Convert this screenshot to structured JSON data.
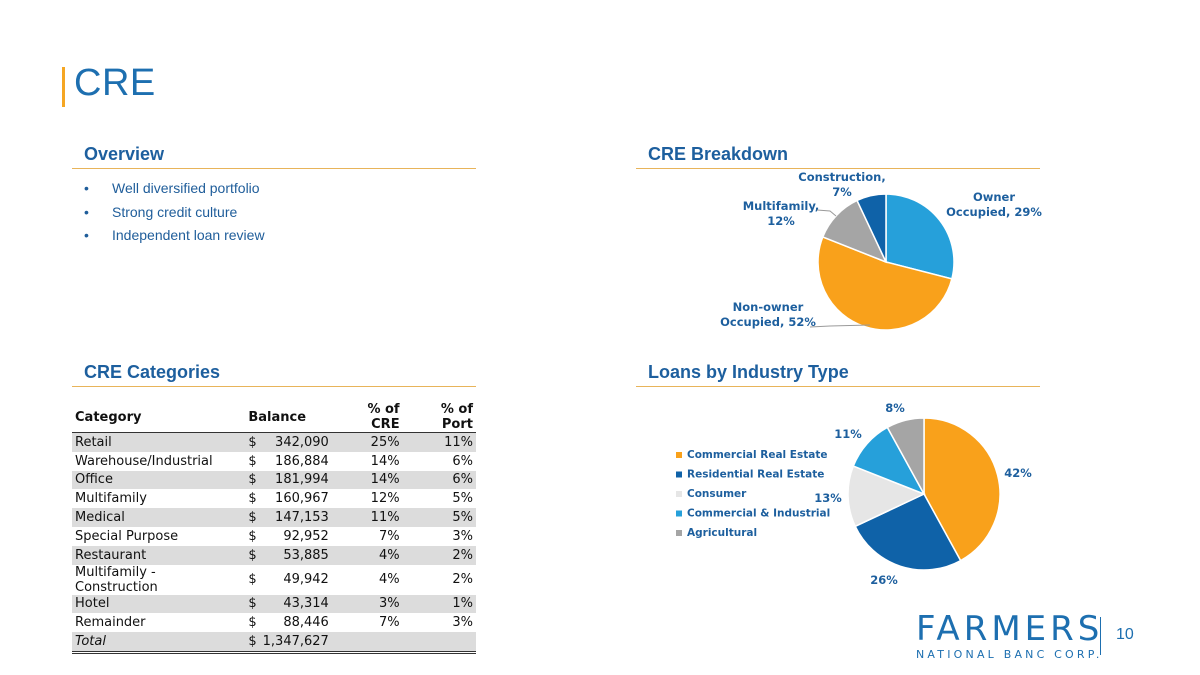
{
  "title": "CRE",
  "overview": {
    "heading": "Overview",
    "bullets": [
      "Well diversified portfolio",
      "Strong credit culture",
      "Independent loan review"
    ]
  },
  "breakdown": {
    "heading": "CRE Breakdown"
  },
  "categories": {
    "heading": "CRE Categories",
    "columns": [
      "Category",
      "Balance",
      "% of CRE",
      "% of Port"
    ],
    "rows": [
      {
        "category": "Retail",
        "cur": "$",
        "balance": "342,090",
        "pct_cre": "25%",
        "pct_port": "11%"
      },
      {
        "category": "Warehouse/Industrial",
        "cur": "$",
        "balance": "186,884",
        "pct_cre": "14%",
        "pct_port": "6%"
      },
      {
        "category": "Office",
        "cur": "$",
        "balance": "181,994",
        "pct_cre": "14%",
        "pct_port": "6%"
      },
      {
        "category": "Multifamily",
        "cur": "$",
        "balance": "160,967",
        "pct_cre": "12%",
        "pct_port": "5%"
      },
      {
        "category": "Medical",
        "cur": "$",
        "balance": "147,153",
        "pct_cre": "11%",
        "pct_port": "5%"
      },
      {
        "category": "Special Purpose",
        "cur": "$",
        "balance": "92,952",
        "pct_cre": "7%",
        "pct_port": "3%"
      },
      {
        "category": "Restaurant",
        "cur": "$",
        "balance": "53,885",
        "pct_cre": "4%",
        "pct_port": "2%"
      },
      {
        "category": "Multifamily - Construction",
        "cur": "$",
        "balance": "49,942",
        "pct_cre": "4%",
        "pct_port": "2%"
      },
      {
        "category": "Hotel",
        "cur": "$",
        "balance": "43,314",
        "pct_cre": "3%",
        "pct_port": "1%"
      },
      {
        "category": "Remainder",
        "cur": "$",
        "balance": "88,446",
        "pct_cre": "7%",
        "pct_port": "3%"
      }
    ],
    "total": {
      "category": "Total",
      "cur": "$",
      "balance": "1,347,627"
    }
  },
  "industry": {
    "heading": "Loans by Industry Type"
  },
  "chart_data": [
    {
      "type": "pie",
      "title": "CRE Breakdown",
      "categories": [
        "Owner Occupied",
        "Non-owner Occupied",
        "Multifamily",
        "Construction"
      ],
      "values": [
        29,
        52,
        12,
        7
      ],
      "label_lines": [
        [
          "Owner",
          "Occupied, 29%"
        ],
        [
          "Non-owner",
          "Occupied, 52%"
        ],
        [
          "Multifamily,",
          "12%"
        ],
        [
          "Construction,",
          "7%"
        ]
      ],
      "colors": [
        "#26a0da",
        "#f9a11b",
        "#a5a5a5",
        "#0f62a8"
      ],
      "legend": "none"
    },
    {
      "type": "pie",
      "title": "Loans by Industry Type",
      "categories": [
        "Commercial Real Estate",
        "Residential Real Estate",
        "Consumer",
        "Commercial & Industrial",
        "Agricultural"
      ],
      "values": [
        42,
        26,
        13,
        11,
        8
      ],
      "labels": [
        "42%",
        "26%",
        "13%",
        "11%",
        "8%"
      ],
      "colors": [
        "#f9a11b",
        "#0f62a8",
        "#e6e6e6",
        "#26a0da",
        "#a5a5a5"
      ],
      "legend": "left"
    }
  ],
  "logo": {
    "main": "FARMERS",
    "sub": "NATIONAL BANC CORP."
  },
  "page_number": "10"
}
